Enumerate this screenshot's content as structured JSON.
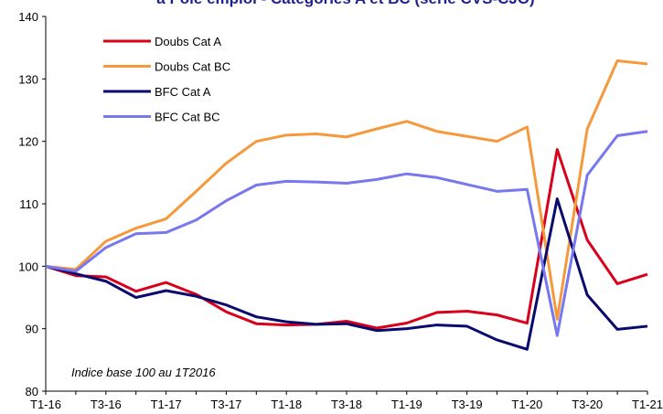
{
  "chart_data": {
    "type": "line",
    "title": "à Pôle emploi - Catégories A et BC (série CVS-CJO)",
    "annotation": "Indice base 100 au 1T2016",
    "categories": [
      "T1-16",
      null,
      "T3-16",
      null,
      "T1-17",
      null,
      "T3-17",
      null,
      "T1-18",
      null,
      "T3-18",
      null,
      "T1-19",
      null,
      "T3-19",
      null,
      "T1-20",
      null,
      "T3-20",
      null,
      "T1-21"
    ],
    "series": [
      {
        "name": "Doubs  Cat A",
        "color": "#d9001b",
        "values": [
          100,
          98.5,
          98.3,
          96,
          97.4,
          95.5,
          92.7,
          90.8,
          90.6,
          90.7,
          91.2,
          90.1,
          90.9,
          92.6,
          92.8,
          92.2,
          90.9,
          118.7,
          104.2,
          97.2,
          98.7
        ]
      },
      {
        "name": "Doubs  Cat BC",
        "color": "#f59a3c",
        "values": [
          100,
          99.5,
          104,
          106.1,
          107.6,
          112,
          116.5,
          120,
          121,
          121.2,
          120.7,
          122,
          123.2,
          121.6,
          120.8,
          120,
          122.3,
          91.5,
          122,
          132.9,
          132.4
        ]
      },
      {
        "name": "BFC Cat A",
        "color": "#0a0a6e",
        "values": [
          100,
          98.8,
          97.6,
          95,
          96.1,
          95.2,
          93.8,
          91.9,
          91.1,
          90.7,
          90.8,
          89.7,
          90,
          90.6,
          90.4,
          88.2,
          86.7,
          110.8,
          95.4,
          89.9,
          90.4
        ]
      },
      {
        "name": "BFC Cat BC",
        "color": "#7777ee",
        "values": [
          100,
          99.2,
          103,
          105.2,
          105.4,
          107.4,
          110.5,
          113,
          113.6,
          113.5,
          113.3,
          113.9,
          114.8,
          114.2,
          113.1,
          112,
          112.3,
          88.9,
          114.6,
          120.9,
          121.6
        ]
      }
    ],
    "ylim": [
      80,
      140
    ],
    "yticks": [
      80,
      90,
      100,
      110,
      120,
      130,
      140
    ],
    "grid": false
  }
}
